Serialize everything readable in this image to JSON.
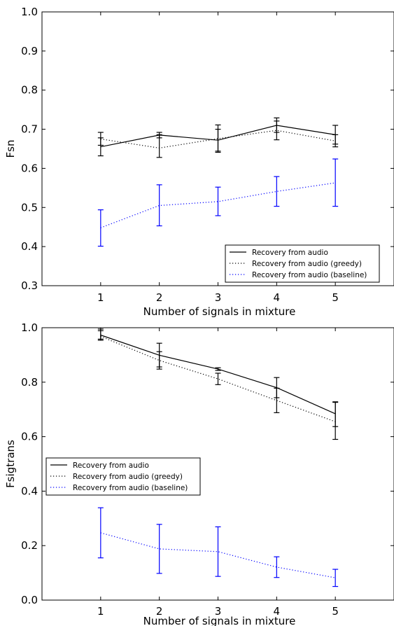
{
  "chart_data": [
    {
      "type": "line",
      "title": "",
      "xlabel": "Number of signals in mixture",
      "ylabel": "Fsn",
      "xlim": [
        0,
        6
      ],
      "ylim": [
        0.3,
        1.0
      ],
      "xticks": [
        1,
        2,
        3,
        4,
        5
      ],
      "yticks": [
        0.3,
        0.4,
        0.5,
        0.6,
        0.7,
        0.8,
        0.9,
        1.0
      ],
      "ytick_labels": [
        "0.3",
        "0.4",
        "0.5",
        "0.6",
        "0.7",
        "0.8",
        "0.9",
        "1.0"
      ],
      "grid": false,
      "legend_position": "bottom-right",
      "x": [
        1,
        2,
        3,
        4,
        5
      ],
      "series": [
        {
          "name": "Recovery from audio",
          "color": "#000000",
          "style": "solid",
          "values": [
            0.655,
            0.685,
            0.672,
            0.71,
            0.686
          ],
          "error_low": [
            0.632,
            0.678,
            0.644,
            0.692,
            0.662
          ],
          "error_high": [
            0.678,
            0.692,
            0.7,
            0.729,
            0.71
          ]
        },
        {
          "name": "Recovery from audio (greedy)",
          "color": "#000000",
          "style": "dotted",
          "values": [
            0.675,
            0.652,
            0.676,
            0.697,
            0.67
          ],
          "error_low": [
            0.659,
            0.628,
            0.641,
            0.673,
            0.655
          ],
          "error_high": [
            0.692,
            0.686,
            0.711,
            0.721,
            0.686
          ]
        },
        {
          "name": "Recovery from audio (baseline)",
          "color": "#0000ff",
          "style": "dotted",
          "values": [
            0.448,
            0.505,
            0.515,
            0.541,
            0.563
          ],
          "error_low": [
            0.401,
            0.453,
            0.479,
            0.503,
            0.503
          ],
          "error_high": [
            0.494,
            0.558,
            0.552,
            0.579,
            0.624
          ]
        }
      ]
    },
    {
      "type": "line",
      "title": "",
      "xlabel": "Number of signals in mixture",
      "ylabel": "Fsigtrans",
      "xlim": [
        0,
        6
      ],
      "ylim": [
        0.0,
        1.0
      ],
      "xticks": [
        1,
        2,
        3,
        4,
        5
      ],
      "yticks": [
        0.0,
        0.2,
        0.4,
        0.6,
        0.8,
        1.0
      ],
      "ytick_labels": [
        "0.0",
        "0.2",
        "0.4",
        "0.6",
        "0.8",
        "1.0"
      ],
      "grid": false,
      "legend_position": "center-left",
      "x": [
        1,
        2,
        3,
        4,
        5
      ],
      "series": [
        {
          "name": "Recovery from audio",
          "color": "#000000",
          "style": "solid",
          "values": [
            0.973,
            0.899,
            0.848,
            0.78,
            0.684
          ],
          "error_low": [
            0.958,
            0.856,
            0.843,
            0.743,
            0.637
          ],
          "error_high": [
            0.989,
            0.943,
            0.853,
            0.817,
            0.728
          ]
        },
        {
          "name": "Recovery from audio (greedy)",
          "color": "#000000",
          "style": "dotted",
          "values": [
            0.968,
            0.88,
            0.812,
            0.733,
            0.655
          ],
          "error_low": [
            0.954,
            0.848,
            0.791,
            0.688,
            0.59
          ],
          "error_high": [
            0.995,
            0.912,
            0.833,
            0.778,
            0.726
          ]
        },
        {
          "name": "Recovery from audio (baseline)",
          "color": "#0000ff",
          "style": "dotted",
          "values": [
            0.247,
            0.188,
            0.178,
            0.121,
            0.082
          ],
          "error_low": [
            0.155,
            0.098,
            0.087,
            0.083,
            0.05
          ],
          "error_high": [
            0.339,
            0.278,
            0.269,
            0.159,
            0.113
          ]
        }
      ]
    }
  ]
}
